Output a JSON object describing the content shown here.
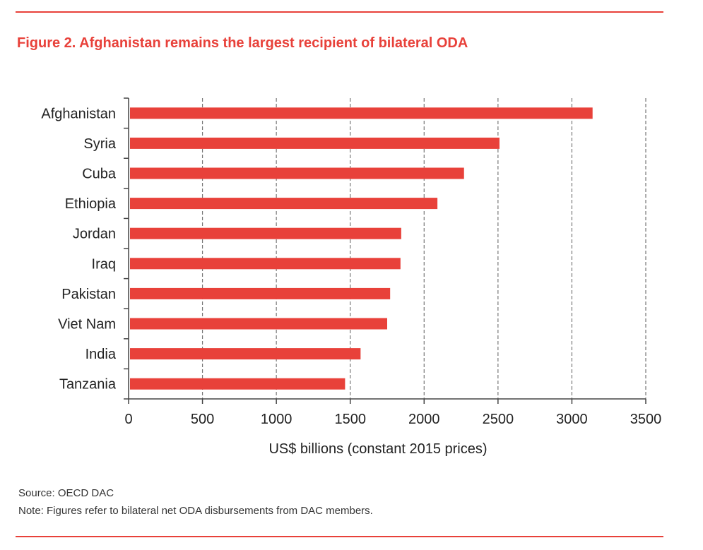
{
  "header": {
    "title": "Figure 2. Afghanistan remains the largest recipient of bilateral ODA"
  },
  "footer": {
    "source": "Source: OECD DAC",
    "note": "Note: Figures refer to bilateral net ODA disbursements from DAC members."
  },
  "colors": {
    "accent": "#e8413a",
    "bar": "#e8413a",
    "grid": "#777777"
  },
  "chart_data": {
    "type": "bar",
    "orientation": "horizontal",
    "categories": [
      "Afghanistan",
      "Syria",
      "Cuba",
      "Ethiopia",
      "Jordan",
      "Iraq",
      "Pakistan",
      "Viet Nam",
      "India",
      "Tanzania"
    ],
    "values": [
      3140,
      2510,
      2270,
      2090,
      1845,
      1840,
      1770,
      1750,
      1570,
      1465
    ],
    "xlabel": "US$ billions (constant 2015 prices)",
    "ylabel": "",
    "xlim": [
      0,
      3500
    ],
    "xticks": [
      0,
      500,
      1000,
      1500,
      2000,
      2500,
      3000,
      3500
    ],
    "grid": "vertical dashed",
    "legend": "none"
  }
}
